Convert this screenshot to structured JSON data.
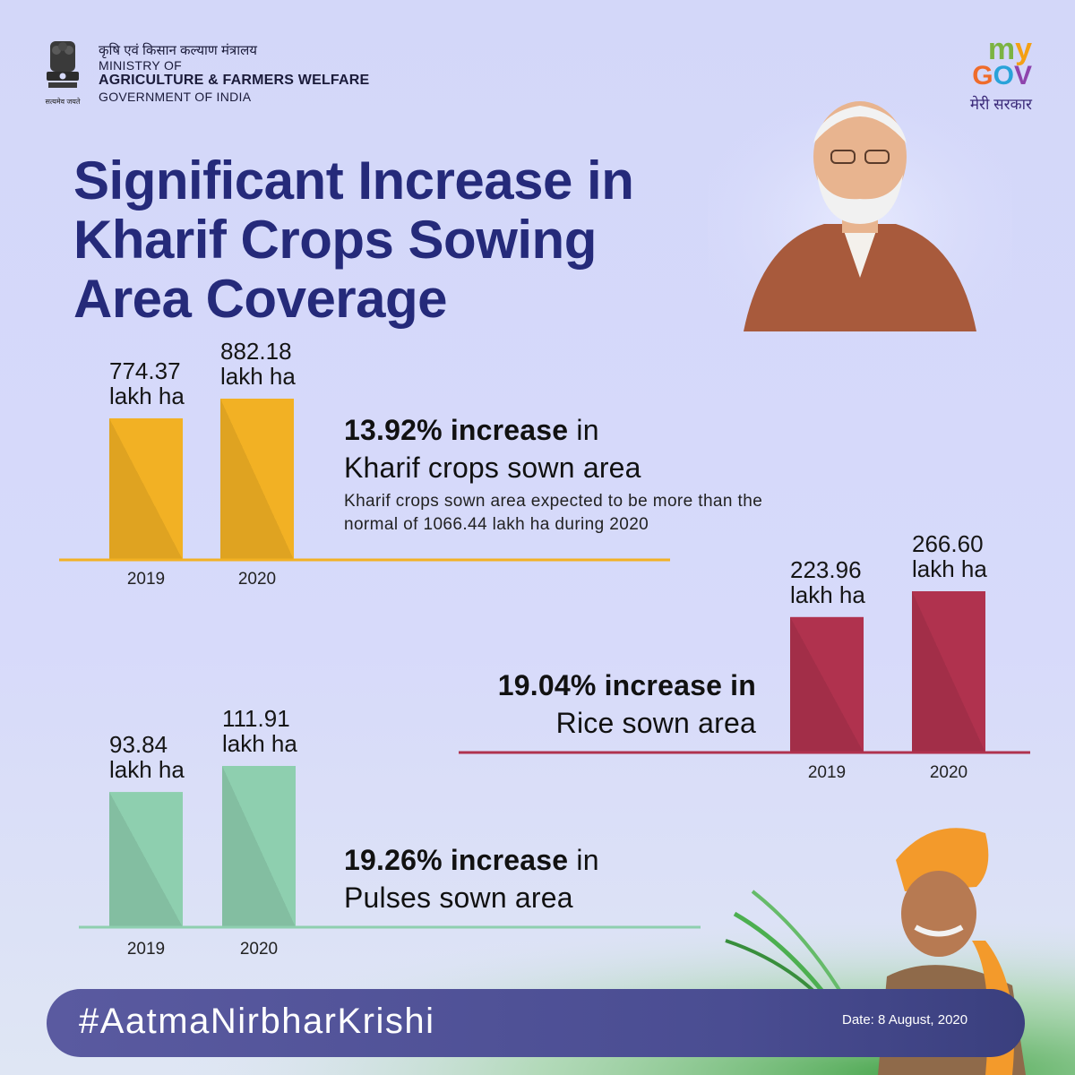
{
  "header": {
    "ministry_hindi": "कृषि एवं किसान कल्याण मंत्रालय",
    "ministry_line1": "MINISTRY OF",
    "ministry_line2": "AGRICULTURE & FARMERS WELFARE",
    "ministry_line3": "GOVERNMENT OF INDIA",
    "emblem_motto": "सत्यमेव जयते",
    "mygov_my": "my",
    "mygov_gov": "GOV",
    "mygov_sub": "मेरी सरकार"
  },
  "title_lines": [
    "Significant Increase in",
    "Kharif Crops Sowing",
    "Area Coverage"
  ],
  "colors": {
    "title": "#252a7a",
    "kharif": "#f2b124",
    "rice": "#b0324e",
    "pulses": "#8ecfaf",
    "bar_text": "#151515"
  },
  "chart_data": [
    {
      "type": "bar",
      "id": "kharif",
      "categories": [
        "2019",
        "2020"
      ],
      "values": [
        774.37,
        882.18
      ],
      "value_labels": [
        [
          "774.37",
          "lakh ha"
        ],
        [
          "882.18",
          "lakh ha"
        ]
      ],
      "headline_bold": "13.92% increase",
      "headline_rest": " in",
      "subline": "Kharif crops sown area",
      "note_line1": "Kharif crops sown area expected to be more than the",
      "note_line2": "normal of 1066.44 lakh ha during 2020",
      "color": "#f2b124"
    },
    {
      "type": "bar",
      "id": "rice",
      "categories": [
        "2019",
        "2020"
      ],
      "values": [
        223.96,
        266.6
      ],
      "value_labels": [
        [
          "223.96",
          "lakh ha"
        ],
        [
          "266.60",
          "lakh ha"
        ]
      ],
      "headline_bold": "19.04% increase in",
      "headline_rest": "",
      "subline": "Rice sown area",
      "color": "#b0324e"
    },
    {
      "type": "bar",
      "id": "pulses",
      "categories": [
        "2019",
        "2020"
      ],
      "values": [
        93.84,
        111.91
      ],
      "value_labels": [
        [
          "93.84",
          "lakh ha"
        ],
        [
          "111.91",
          "lakh ha"
        ]
      ],
      "headline_bold": "19.26% increase",
      "headline_rest": " in",
      "subline": "Pulses sown area",
      "color": "#8ecfaf"
    }
  ],
  "footer": {
    "hashtag": "#AatmaNirbharKrishi",
    "date": "Date: 8 August, 2020"
  }
}
